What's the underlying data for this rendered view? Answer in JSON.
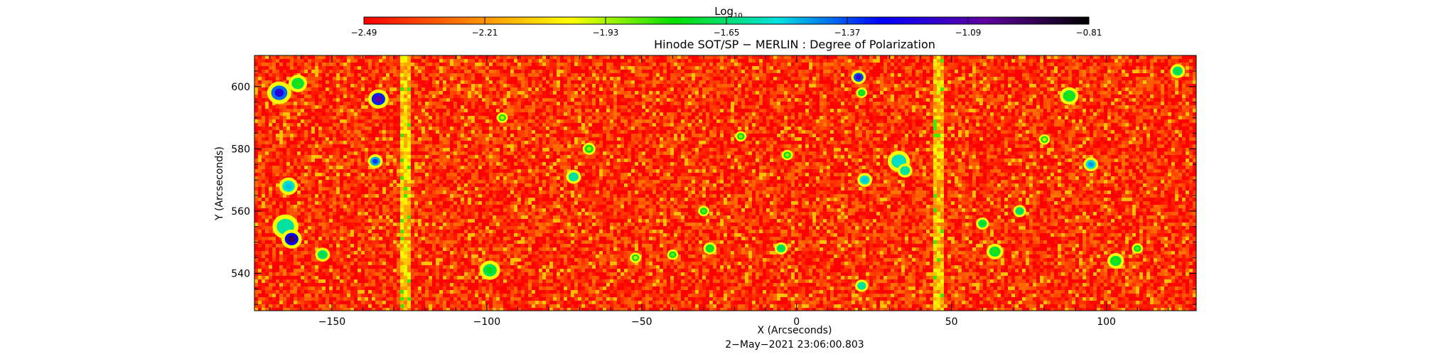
{
  "chart_data": {
    "type": "heatmap",
    "title": "Hinode SOT/SP − MERLIN : Degree of Polarization",
    "subtitle": "2−May−2021 23:06:00.803",
    "xlabel": "X (Arcseconds)",
    "ylabel": "Y (Arcseconds)",
    "xlim": [
      -175,
      129
    ],
    "ylim": [
      528,
      610
    ],
    "x_ticks": [
      -150,
      -100,
      -50,
      0,
      50,
      100
    ],
    "x_tick_labels": [
      "−150",
      "−100",
      "−50",
      "0",
      "50",
      "100"
    ],
    "y_ticks": [
      540,
      560,
      580,
      600
    ],
    "y_tick_labels": [
      "540",
      "560",
      "580",
      "600"
    ],
    "colorbar": {
      "label_base": "Log",
      "label_sub": "10",
      "range": [
        -2.49,
        -0.81
      ],
      "ticks": [
        -2.49,
        -2.21,
        -1.93,
        -1.65,
        -1.37,
        -1.09,
        -0.81
      ],
      "tick_labels": [
        "−2.49",
        "−2.21",
        "−1.93",
        "−1.65",
        "−1.37",
        "−1.09",
        "−0.81"
      ],
      "colors": [
        "#ff0000",
        "#ff8000",
        "#ffff00",
        "#00e000",
        "#00e0e0",
        "#0000ff",
        "#6000a0",
        "#000000"
      ]
    },
    "background_value": -2.4,
    "bright_strips": [
      {
        "x": [
          -128,
          -124
        ],
        "value": -2.1
      },
      {
        "x": [
          -117,
          -116.5
        ],
        "value": -2.25
      },
      {
        "x": [
          44,
          48
        ],
        "value": -2.1
      }
    ],
    "features": [
      {
        "x": -167,
        "y": 598,
        "r": 2.6,
        "value": -1.2
      },
      {
        "x": -161,
        "y": 601,
        "r": 2,
        "value": -1.8
      },
      {
        "x": -135,
        "y": 596,
        "r": 2.2,
        "value": -1.05
      },
      {
        "x": -136,
        "y": 576,
        "r": 1.6,
        "value": -1.35
      },
      {
        "x": -164,
        "y": 568,
        "r": 2,
        "value": -1.5
      },
      {
        "x": -165,
        "y": 555,
        "r": 2.8,
        "value": -1.6
      },
      {
        "x": -163,
        "y": 551,
        "r": 2.2,
        "value": -0.95
      },
      {
        "x": -153,
        "y": 546,
        "r": 1.6,
        "value": -1.7
      },
      {
        "x": -99,
        "y": 541,
        "r": 2.2,
        "value": -1.75
      },
      {
        "x": -72,
        "y": 571,
        "r": 1.6,
        "value": -1.6
      },
      {
        "x": -67,
        "y": 580,
        "r": 1.4,
        "value": -1.9
      },
      {
        "x": -40,
        "y": 546,
        "r": 1.2,
        "value": -1.85
      },
      {
        "x": -30,
        "y": 560,
        "r": 1.2,
        "value": -1.85
      },
      {
        "x": -28,
        "y": 548,
        "r": 1.4,
        "value": -1.8
      },
      {
        "x": -18,
        "y": 584,
        "r": 1.2,
        "value": -1.9
      },
      {
        "x": -5,
        "y": 548,
        "r": 1.4,
        "value": -1.7
      },
      {
        "x": -3,
        "y": 578,
        "r": 1.2,
        "value": -1.9
      },
      {
        "x": 20,
        "y": 603,
        "r": 1.6,
        "value": -1.15
      },
      {
        "x": 21,
        "y": 598,
        "r": 1.2,
        "value": -1.8
      },
      {
        "x": 22,
        "y": 570,
        "r": 1.6,
        "value": -1.5
      },
      {
        "x": 33,
        "y": 576,
        "r": 2.4,
        "value": -1.55
      },
      {
        "x": 35,
        "y": 573,
        "r": 1.6,
        "value": -1.6
      },
      {
        "x": 21,
        "y": 536,
        "r": 1.4,
        "value": -1.6
      },
      {
        "x": 60,
        "y": 556,
        "r": 1.4,
        "value": -1.75
      },
      {
        "x": 64,
        "y": 547,
        "r": 1.8,
        "value": -1.8
      },
      {
        "x": 72,
        "y": 560,
        "r": 1.4,
        "value": -1.7
      },
      {
        "x": 88,
        "y": 597,
        "r": 2,
        "value": -1.8
      },
      {
        "x": 95,
        "y": 575,
        "r": 1.6,
        "value": -1.45
      },
      {
        "x": 103,
        "y": 544,
        "r": 1.8,
        "value": -1.8
      },
      {
        "x": 123,
        "y": 605,
        "r": 1.6,
        "value": -1.7
      },
      {
        "x": 110,
        "y": 548,
        "r": 1.2,
        "value": -1.85
      },
      {
        "x": -95,
        "y": 590,
        "r": 1.2,
        "value": -1.95
      },
      {
        "x": -52,
        "y": 545,
        "r": 1.2,
        "value": -1.95
      },
      {
        "x": 80,
        "y": 583,
        "r": 1.2,
        "value": -1.95
      }
    ]
  }
}
